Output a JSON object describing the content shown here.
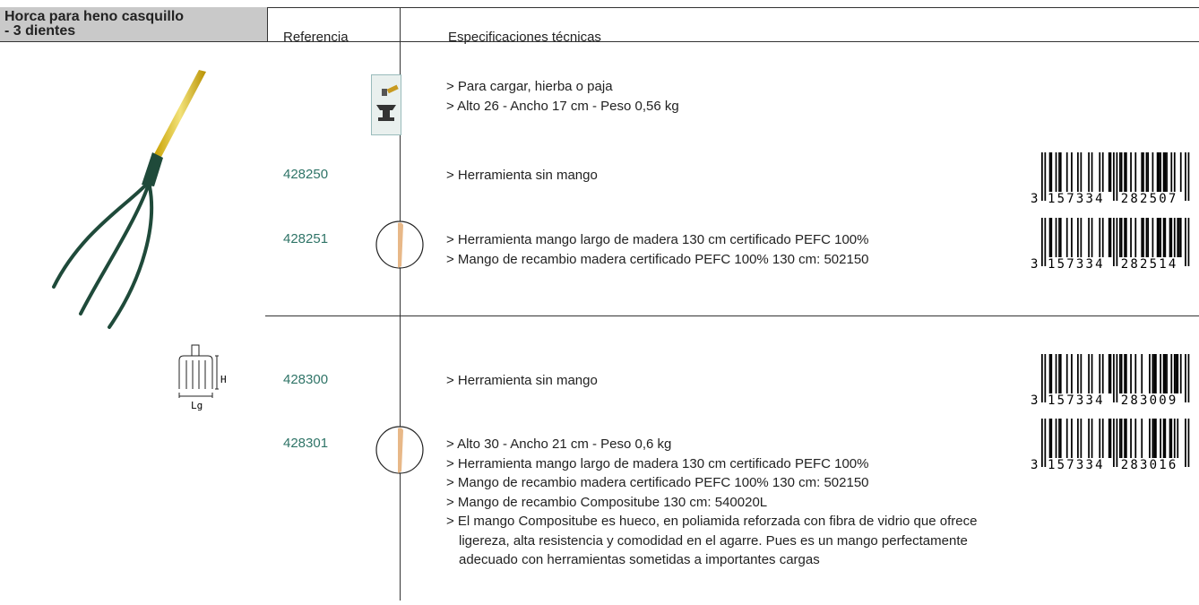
{
  "header": {
    "title_lines": [
      "Horca para heno casquillo",
      "- 3 dientes"
    ],
    "columns": [
      "Referencia",
      "Especificaciones técnicas"
    ]
  },
  "general_specs": [
    "> Para cargar, hierba o paja",
    "> Alto 26 - Ancho 17 cm - Peso 0,56 kg"
  ],
  "rows": [
    {
      "reference": "428250",
      "specs": [
        "> Herramienta sin mango"
      ],
      "barcode": {
        "lead": "3",
        "left": "157334",
        "right": "282507"
      }
    },
    {
      "reference": "428251",
      "specs": [
        "> Herramienta mango largo de madera 130 cm certificado PEFC 100%",
        "> Mango de recambio madera certificado PEFC 100% 130 cm: 502150"
      ],
      "barcode": {
        "lead": "3",
        "left": "157334",
        "right": "282514"
      }
    },
    {
      "reference": "428300",
      "specs": [
        "> Herramienta sin mango"
      ],
      "barcode": {
        "lead": "3",
        "left": "157334",
        "right": "283009"
      }
    },
    {
      "reference": "428301",
      "specs": [
        "> Alto 30 - Ancho 21 cm - Peso 0,6 kg",
        "> Herramienta mango largo de madera 130 cm certificado PEFC 100%",
        "> Mango de recambio madera certificado PEFC 100% 130 cm: 502150",
        "> Mango de recambio Compositube 130 cm: 540020L",
        "> El mango Compositube es hueco, en poliamida reforzada con fibra de vidrio que ofrece ligereza, alta resistencia y comodidad en el agarre. Pues es un mango perfectamente adecuado con herramientas sometidas a importantes cargas"
      ],
      "barcode": {
        "lead": "3",
        "left": "157334",
        "right": "283016"
      }
    }
  ],
  "diagram": {
    "height_label": "H",
    "width_label": "Lg"
  }
}
